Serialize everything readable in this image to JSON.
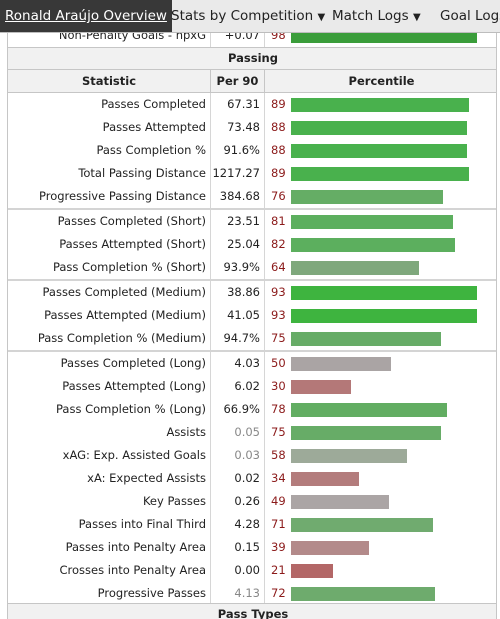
{
  "nav": {
    "active": "Ronald Araújo Overview",
    "items": [
      "Stats by Competition",
      "Match Logs",
      "Goal Logs"
    ],
    "dropdown_arrow": "▼"
  },
  "previous_row": {
    "label": "Non-Penalty Goals - npxG",
    "per90": "+0.07",
    "pct": "98"
  },
  "section_title": "Passing",
  "headers": {
    "stat": "Statistic",
    "per90": "Per 90",
    "pct": "Percentile"
  },
  "rows": [
    {
      "label": "Passes Completed",
      "per90": "67.31",
      "pct": "89",
      "pct_value": 89,
      "color": "#49b14d"
    },
    {
      "label": "Passes Attempted",
      "per90": "73.48",
      "pct": "88",
      "pct_value": 88,
      "color": "#49b14d"
    },
    {
      "label": "Pass Completion %",
      "per90": "91.6%",
      "pct": "88",
      "pct_value": 88,
      "color": "#49b14d"
    },
    {
      "label": "Total Passing Distance",
      "per90": "1217.27",
      "pct": "89",
      "pct_value": 89,
      "color": "#49b14d"
    },
    {
      "label": "Progressive Passing Distance",
      "per90": "384.68",
      "pct": "76",
      "pct_value": 76,
      "color": "#65ad65"
    },
    {
      "label": "Passes Completed (Short)",
      "per90": "23.51",
      "pct": "81",
      "pct_value": 81,
      "color": "#5caf5e"
    },
    {
      "label": "Passes Attempted (Short)",
      "per90": "25.04",
      "pct": "82",
      "pct_value": 82,
      "color": "#5caf5e"
    },
    {
      "label": "Pass Completion % (Short)",
      "per90": "93.9%",
      "pct": "64",
      "pct_value": 64,
      "color": "#7fa87c"
    },
    {
      "label": "Passes Completed (Medium)",
      "per90": "38.86",
      "pct": "93",
      "pct_value": 93,
      "color": "#3eb43f"
    },
    {
      "label": "Passes Attempted (Medium)",
      "per90": "41.05",
      "pct": "93",
      "pct_value": 93,
      "color": "#3eb43f"
    },
    {
      "label": "Pass Completion % (Medium)",
      "per90": "94.7%",
      "pct": "75",
      "pct_value": 75,
      "color": "#67ac67"
    },
    {
      "label": "Passes Completed (Long)",
      "per90": "4.03",
      "pct": "50",
      "pct_value": 50,
      "color": "#aaa4a4"
    },
    {
      "label": "Passes Attempted (Long)",
      "per90": "6.02",
      "pct": "30",
      "pct_value": 30,
      "color": "#b47878"
    },
    {
      "label": "Pass Completion % (Long)",
      "per90": "66.9%",
      "pct": "78",
      "pct_value": 78,
      "color": "#62ad62"
    },
    {
      "label": "Assists",
      "per90": "0.05",
      "pct": "75",
      "pct_value": 75,
      "color": "#67ac67",
      "per90_muted": true
    },
    {
      "label": "xAG: Exp. Assisted Goals",
      "per90": "0.03",
      "pct": "58",
      "pct_value": 58,
      "color": "#9daa99",
      "per90_muted": true
    },
    {
      "label": "xA: Expected Assists",
      "per90": "0.02",
      "pct": "34",
      "pct_value": 34,
      "color": "#b37c7c"
    },
    {
      "label": "Key Passes",
      "per90": "0.26",
      "pct": "49",
      "pct_value": 49,
      "color": "#aba5a5"
    },
    {
      "label": "Passes into Final Third",
      "per90": "4.28",
      "pct": "71",
      "pct_value": 71,
      "color": "#70ab6f"
    },
    {
      "label": "Passes into Penalty Area",
      "per90": "0.15",
      "pct": "39",
      "pct_value": 39,
      "color": "#b38a8a"
    },
    {
      "label": "Crosses into Penalty Area",
      "per90": "0.00",
      "pct": "21",
      "pct_value": 21,
      "color": "#b36767"
    },
    {
      "label": "Progressive Passes",
      "per90": "4.13",
      "pct": "72",
      "pct_value": 72,
      "color": "#6eab6d",
      "per90_muted": true
    }
  ],
  "next_section_title": "Pass Types",
  "colors": {
    "muted_text": "#888888",
    "pct_text": "#8b1a1a",
    "previous_bar": "#3a9d3a"
  }
}
